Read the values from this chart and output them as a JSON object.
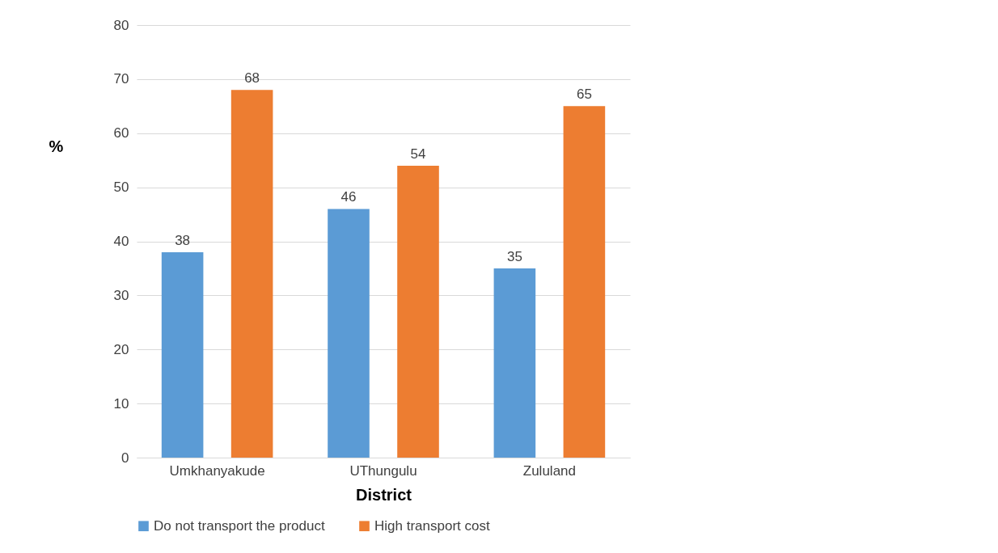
{
  "chart_data": {
    "type": "bar",
    "xlabel": "District",
    "ylabel": "%",
    "categories": [
      "Umkhanyakude",
      "UThungulu",
      "Zululand"
    ],
    "series": [
      {
        "name": "Do not transport the product",
        "color": "#5b9bd5",
        "values": [
          38,
          46,
          35
        ]
      },
      {
        "name": "High transport cost",
        "color": "#ed7d31",
        "values": [
          68,
          54,
          65
        ]
      }
    ],
    "ylim": [
      0,
      80
    ],
    "yticks": [
      0,
      10,
      20,
      30,
      40,
      50,
      60,
      70,
      80
    ],
    "grid": "y",
    "legend": "bottom",
    "data_labels": true
  }
}
